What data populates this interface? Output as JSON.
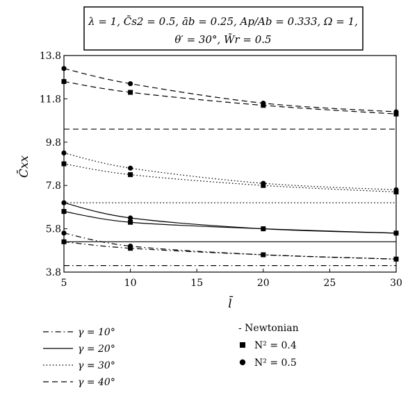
{
  "chart_data": {
    "type": "line",
    "title_box": {
      "line1": "λ = 1, C̄s2 = 0.5, āb = 0.25, Ap/Ab = 0.333, Ω = 1,",
      "line2": "θ′ = 30°, W̄r = 0.5"
    },
    "xlabel": "l̄",
    "ylabel": "C̄xx",
    "xlim": [
      5,
      30
    ],
    "ylim": [
      3.8,
      13.8
    ],
    "xticks": [
      5,
      10,
      15,
      20,
      25,
      30
    ],
    "yticks": [
      3.8,
      5.8,
      7.8,
      9.8,
      11.8,
      13.8
    ],
    "ytick_labels": [
      "3.8",
      "5.8",
      "7.8",
      "9.8",
      "11.8",
      "13.8"
    ],
    "x": [
      5,
      10,
      20,
      30
    ],
    "series": [
      {
        "gamma": "γ = 10°",
        "dash": "dashdot",
        "newtonian": 4.1,
        "n04": [
          5.2,
          4.9,
          4.6,
          4.4
        ],
        "n05": [
          5.6,
          5.0,
          4.6,
          4.4
        ]
      },
      {
        "gamma": "γ = 20°",
        "dash": "solid",
        "newtonian": 5.2,
        "n04": [
          6.6,
          6.1,
          5.8,
          5.6
        ],
        "n05": [
          7.0,
          6.3,
          5.8,
          5.6
        ]
      },
      {
        "gamma": "γ = 30°",
        "dash": "dotted",
        "newtonian": 7.0,
        "n04": [
          8.8,
          8.3,
          7.8,
          7.5
        ],
        "n05": [
          9.3,
          8.6,
          7.9,
          7.6
        ]
      },
      {
        "gamma": "γ = 40°",
        "dash": "dashed",
        "newtonian": 10.4,
        "n04": [
          12.6,
          12.1,
          11.5,
          11.1
        ],
        "n05": [
          13.2,
          12.5,
          11.6,
          11.2
        ]
      }
    ],
    "legend": {
      "line_styles": [
        "γ = 10°",
        "γ = 20°",
        "γ = 30°",
        "γ = 40°"
      ],
      "markers": {
        "newtonian": "- Newtonian",
        "n04": "N² = 0.4",
        "n05": "N² = 0.5"
      }
    },
    "colors": {
      "ink": "#000000",
      "background": "#ffffff"
    }
  }
}
